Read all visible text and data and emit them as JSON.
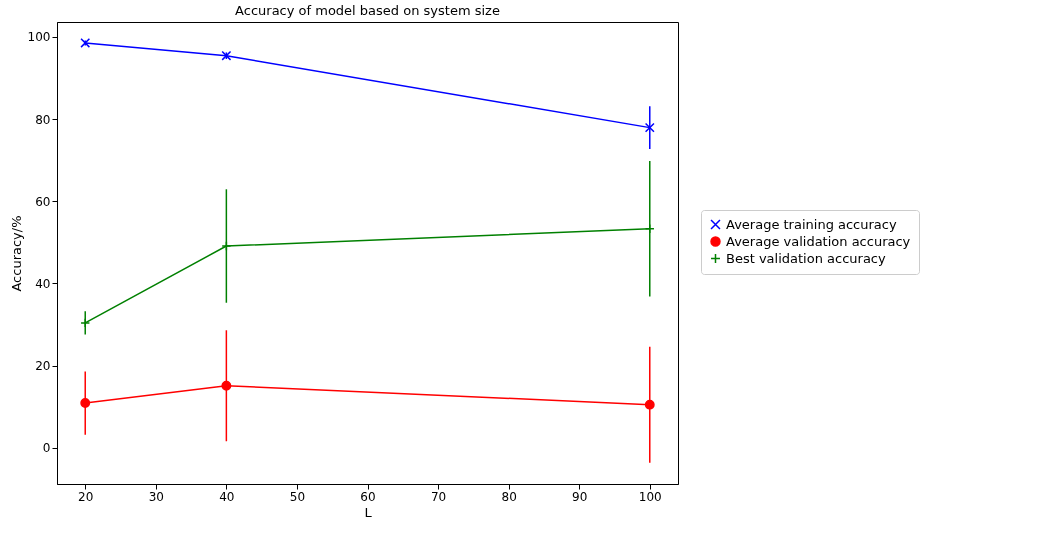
{
  "chart_data": {
    "type": "line",
    "title": "Accuracy of model based on system size",
    "xlabel": "L",
    "ylabel": "Accuracy/%",
    "x": [
      20,
      40,
      100
    ],
    "series": [
      {
        "name": "Average training accuracy",
        "color": "#0000ff",
        "marker": "cross",
        "values": [
          98.5,
          95.4,
          77.9
        ],
        "errors": [
          0.6,
          0.8,
          5.2
        ]
      },
      {
        "name": "Average validation accuracy",
        "color": "#ff0000",
        "marker": "circle",
        "values": [
          10.9,
          15.1,
          10.5
        ],
        "errors": [
          7.7,
          13.5,
          14.1
        ]
      },
      {
        "name": "Best validation accuracy",
        "color": "#008000",
        "marker": "plus",
        "values": [
          30.4,
          49.1,
          53.3
        ],
        "errors": [
          2.8,
          13.8,
          16.5
        ]
      }
    ],
    "xlim": [
      16,
      104
    ],
    "ylim": [
      -8.8,
      103.6
    ],
    "xticks": [
      20,
      30,
      40,
      50,
      60,
      70,
      80,
      90,
      100
    ],
    "yticks": [
      0,
      20,
      40,
      60,
      80,
      100
    ],
    "grid": false,
    "legend": "right"
  }
}
